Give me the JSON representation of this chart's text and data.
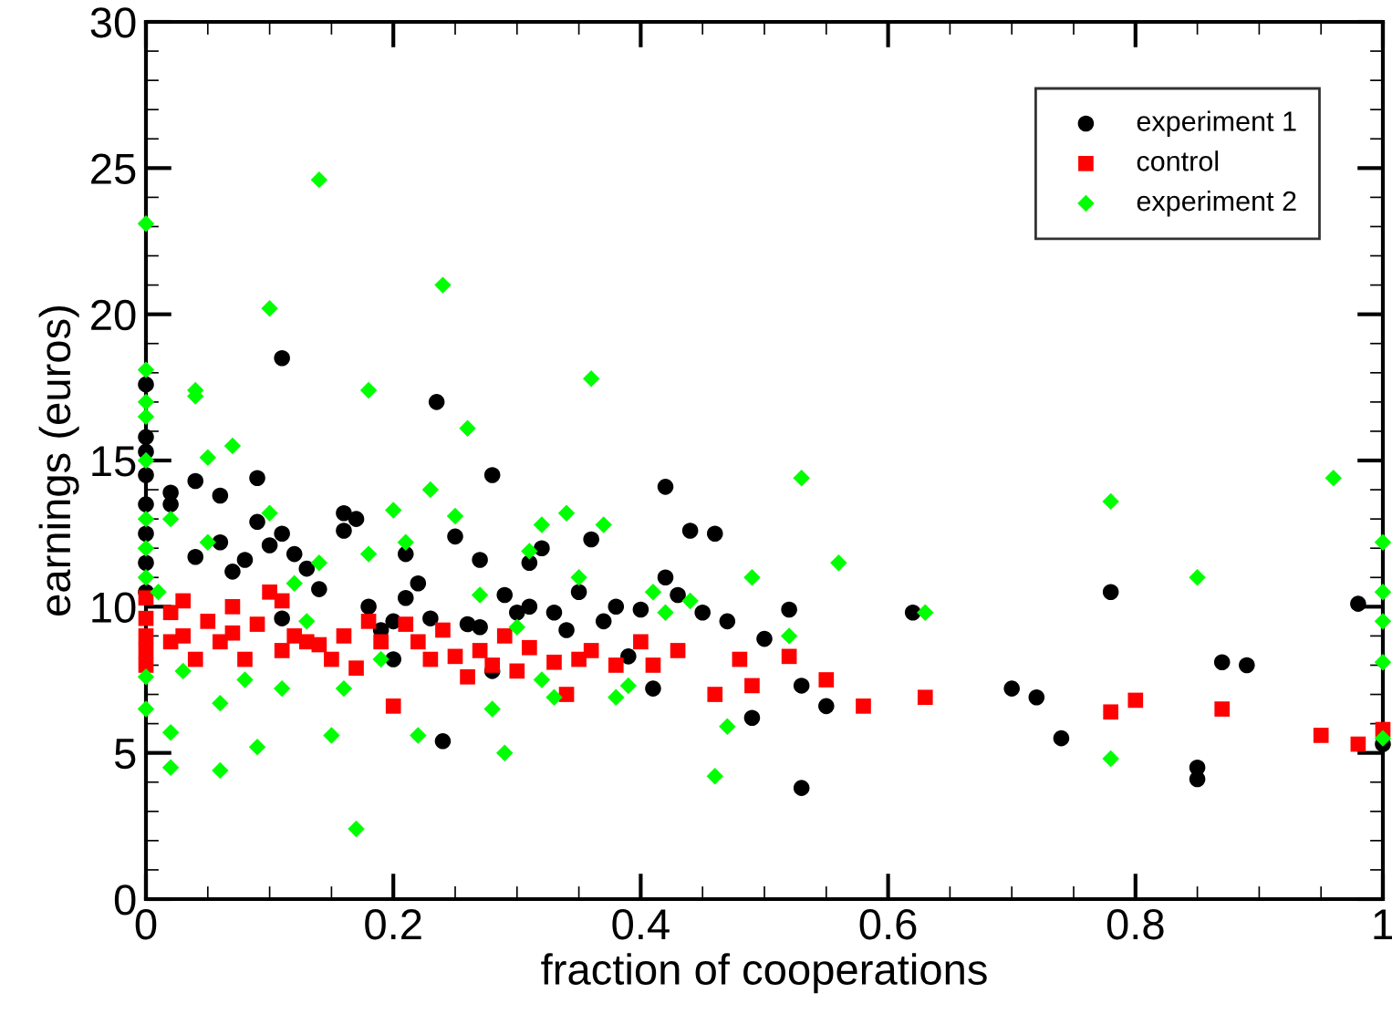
{
  "chart_data": {
    "type": "scatter",
    "xlabel": "fraction of cooperations",
    "ylabel": "earnings (euros)",
    "xlim": [
      0,
      1
    ],
    "ylim": [
      0,
      30
    ],
    "xticks": [
      0,
      0.2,
      0.4,
      0.6,
      0.8,
      1
    ],
    "yticks": [
      0,
      5,
      10,
      15,
      20,
      25,
      30
    ],
    "grid": false,
    "legend": "top right",
    "series": [
      {
        "name": "experiment 1",
        "color": "#000000",
        "marker": "circle",
        "x": [
          0,
          0,
          0,
          0,
          0,
          0,
          0,
          0,
          0.02,
          0.02,
          0.04,
          0.04,
          0.06,
          0.06,
          0.07,
          0.08,
          0.09,
          0.09,
          0.1,
          0.11,
          0.11,
          0.12,
          0.11,
          0.13,
          0.14,
          0.16,
          0.16,
          0.17,
          0.18,
          0.19,
          0.2,
          0.2,
          0.21,
          0.21,
          0.22,
          0.23,
          0.235,
          0.24,
          0.25,
          0.26,
          0.27,
          0.27,
          0.28,
          0.28,
          0.29,
          0.3,
          0.31,
          0.31,
          0.32,
          0.33,
          0.34,
          0.35,
          0.36,
          0.37,
          0.38,
          0.39,
          0.4,
          0.41,
          0.42,
          0.42,
          0.43,
          0.44,
          0.45,
          0.46,
          0.47,
          0.49,
          0.5,
          0.52,
          0.53,
          0.53,
          0.55,
          0.62,
          0.7,
          0.72,
          0.74,
          0.78,
          0.85,
          0.85,
          0.87,
          0.89,
          0.98,
          1.0
        ],
        "values": [
          17.6,
          15.8,
          15.3,
          14.5,
          13.5,
          12.5,
          11.5,
          10.5,
          13.9,
          13.5,
          14.3,
          11.7,
          13.8,
          12.2,
          11.2,
          11.6,
          14.4,
          12.9,
          12.1,
          18.5,
          12.5,
          11.8,
          9.6,
          11.3,
          10.6,
          13.2,
          12.6,
          13.0,
          10.0,
          9.2,
          9.5,
          8.2,
          11.8,
          10.3,
          10.8,
          9.6,
          17.0,
          5.4,
          12.4,
          9.4,
          11.6,
          9.3,
          14.5,
          7.8,
          10.4,
          9.8,
          11.5,
          10.0,
          12.0,
          9.8,
          9.2,
          10.5,
          12.3,
          9.5,
          10.0,
          8.3,
          9.9,
          7.2,
          14.1,
          11.0,
          10.4,
          12.6,
          9.8,
          12.5,
          9.5,
          6.2,
          8.9,
          9.9,
          3.8,
          7.3,
          6.6,
          9.8,
          7.2,
          6.9,
          5.5,
          10.5,
          4.1,
          4.5,
          8.1,
          8.0,
          10.1,
          5.3
        ]
      },
      {
        "name": "control",
        "color": "#ff0000",
        "marker": "square",
        "x": [
          0,
          0,
          0,
          0,
          0,
          0.02,
          0.02,
          0.03,
          0.03,
          0.04,
          0.05,
          0.06,
          0.07,
          0.07,
          0.08,
          0.09,
          0.1,
          0.11,
          0.11,
          0.12,
          0.13,
          0.14,
          0.15,
          0.16,
          0.17,
          0.18,
          0.19,
          0.2,
          0.21,
          0.22,
          0.23,
          0.24,
          0.25,
          0.26,
          0.27,
          0.28,
          0.29,
          0.3,
          0.31,
          0.33,
          0.34,
          0.35,
          0.36,
          0.38,
          0.4,
          0.41,
          0.43,
          0.46,
          0.48,
          0.49,
          0.52,
          0.55,
          0.58,
          0.63,
          0.78,
          0.8,
          0.87,
          0.95,
          0.98,
          1.0
        ],
        "values": [
          10.3,
          9.6,
          9.0,
          8.5,
          8.0,
          9.8,
          8.8,
          10.2,
          9.0,
          8.2,
          9.5,
          8.8,
          10.0,
          9.1,
          8.2,
          9.4,
          10.5,
          10.2,
          8.5,
          9.0,
          8.8,
          8.7,
          8.2,
          9.0,
          7.9,
          9.5,
          8.8,
          6.6,
          9.4,
          8.8,
          8.2,
          9.2,
          8.3,
          7.6,
          8.5,
          8.0,
          9.0,
          7.8,
          8.6,
          8.1,
          7.0,
          8.2,
          8.5,
          8.0,
          8.8,
          8.0,
          8.5,
          7.0,
          8.2,
          7.3,
          8.3,
          7.5,
          6.6,
          6.9,
          6.4,
          6.8,
          6.5,
          5.6,
          5.3,
          5.8
        ]
      },
      {
        "name": "experiment 2",
        "color": "#00ff00",
        "marker": "diamond",
        "x": [
          0,
          0,
          0,
          0,
          0,
          0,
          0,
          0,
          0,
          0,
          0.01,
          0.02,
          0.02,
          0.02,
          0.03,
          0.04,
          0.04,
          0.05,
          0.05,
          0.06,
          0.06,
          0.07,
          0.08,
          0.09,
          0.1,
          0.1,
          0.11,
          0.12,
          0.13,
          0.14,
          0.14,
          0.15,
          0.16,
          0.17,
          0.18,
          0.18,
          0.19,
          0.2,
          0.21,
          0.22,
          0.23,
          0.24,
          0.25,
          0.26,
          0.27,
          0.28,
          0.29,
          0.3,
          0.31,
          0.32,
          0.32,
          0.33,
          0.34,
          0.35,
          0.36,
          0.37,
          0.38,
          0.39,
          0.41,
          0.42,
          0.44,
          0.46,
          0.47,
          0.49,
          0.52,
          0.53,
          0.56,
          0.63,
          0.78,
          0.78,
          0.85,
          0.96,
          1.0,
          1.0,
          1.0,
          1.0,
          1.0
        ],
        "values": [
          23.1,
          18.1,
          17.0,
          16.5,
          15.0,
          13.0,
          11.0,
          12.0,
          7.6,
          6.5,
          10.5,
          13.0,
          5.7,
          4.5,
          7.8,
          17.4,
          17.2,
          15.1,
          12.2,
          4.4,
          6.7,
          15.5,
          7.5,
          5.2,
          20.2,
          13.2,
          7.2,
          10.8,
          9.5,
          24.6,
          11.5,
          5.6,
          7.2,
          2.4,
          17.4,
          11.8,
          8.2,
          13.3,
          12.2,
          5.6,
          14.0,
          21.0,
          13.1,
          16.1,
          10.4,
          6.5,
          5.0,
          9.3,
          11.9,
          12.8,
          7.5,
          6.9,
          13.2,
          11.0,
          17.8,
          12.8,
          6.9,
          7.3,
          10.5,
          9.8,
          10.2,
          4.2,
          5.9,
          11.0,
          9.0,
          14.4,
          11.5,
          9.8,
          4.8,
          13.6,
          11.0,
          14.4,
          12.2,
          10.5,
          9.5,
          8.1,
          5.5
        ]
      }
    ]
  }
}
